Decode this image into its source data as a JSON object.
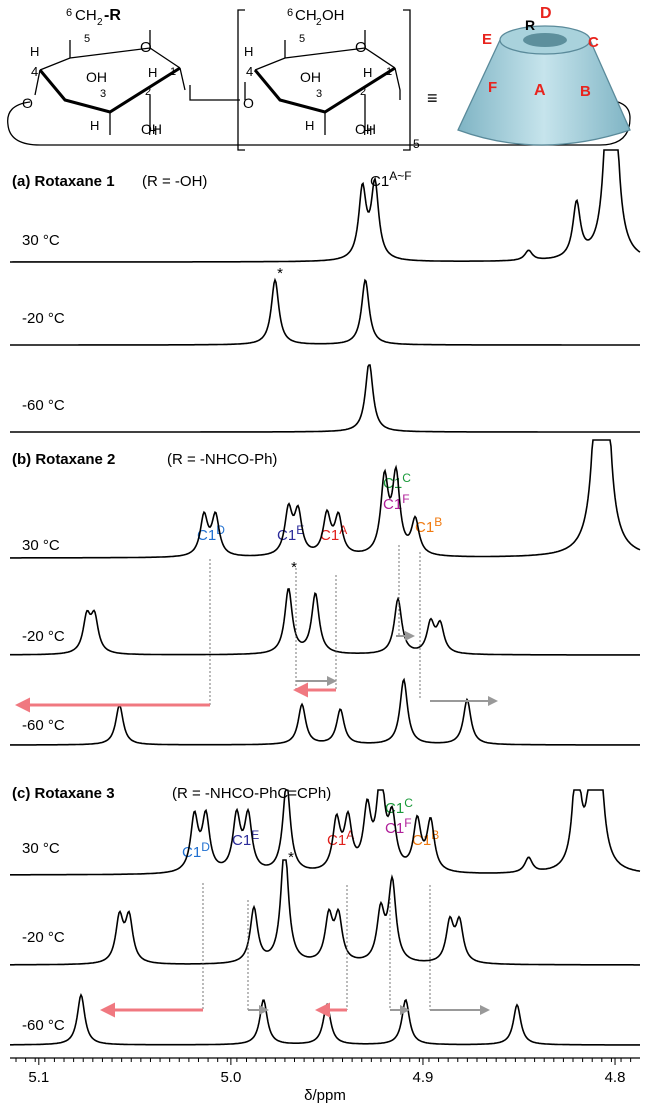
{
  "figure": {
    "structure": {
      "labels": [
        "6",
        "CH",
        "2",
        "-R",
        "5",
        "O",
        "H",
        "4",
        "OH",
        "H",
        "3",
        "2",
        "H",
        "1",
        "O",
        "H",
        "OH",
        "6",
        "CH",
        "2",
        "OH",
        "5",
        "O",
        "H",
        "4",
        "OH",
        "H",
        "3",
        "2",
        "H",
        "1",
        "O",
        "H",
        "OH",
        "5",
        "≡",
        "R",
        "D",
        "E",
        "C",
        "F",
        "A",
        "B"
      ]
    },
    "chart_data": {
      "type": "nmr-stack",
      "x_label": "δ/ppm",
      "xlim": [
        5.115,
        4.787
      ],
      "xticks": [
        5.1,
        {
          "value": 5,
          "label": "5.0"
        },
        4.9,
        4.8
      ],
      "panels": [
        {
          "label": "(a) Rotaxane 1",
          "substituent": "(R = -OH)",
          "peak_labels": [
            {
              "base": "C1",
              "sup": "A~F",
              "color": "#000000"
            }
          ],
          "asterisks": [
            "*"
          ],
          "spectra": [
            {
              "temperature": "30 °C",
              "peaks": [
                {
                  "ppm": 4.9315,
                  "height": 70
                },
                {
                  "ppm": 4.925,
                  "height": 75
                },
                {
                  "ppm": 4.845,
                  "height": 10
                },
                {
                  "ppm": 4.82,
                  "height": 55
                },
                {
                  "ppm": 4.802,
                  "height": 400
                }
              ]
            },
            {
              "temperature": "-20 °C",
              "peaks": [
                {
                  "ppm": 4.977,
                  "height": 65
                },
                {
                  "ppm": 4.93,
                  "height": 65
                }
              ]
            },
            {
              "temperature": "-60 °C",
              "peaks": [
                {
                  "ppm": 4.928,
                  "height": 70
                }
              ]
            }
          ]
        },
        {
          "label": "(b) Rotaxane 2",
          "substituent": "(R = -NHCO-Ph)",
          "peak_labels": [
            {
              "base": "C1",
              "sup": "D",
              "color": "#1f6fd0"
            },
            {
              "base": "C1",
              "sup": "E",
              "color": "#2b2b9a"
            },
            {
              "base": "C1",
              "sup": "A",
              "color": "#e0201c"
            },
            {
              "base": "C1",
              "sup": "C",
              "color": "#1a9a3a"
            },
            {
              "base": "C1",
              "sup": "F",
              "color": "#b0209a"
            },
            {
              "base": "C1",
              "sup": "B",
              "color": "#f07a10"
            }
          ],
          "asterisks": [
            "*"
          ],
          "spectra": [
            {
              "temperature": "30 °C",
              "peaks": [
                {
                  "ppm": 5.014,
                  "height": 40
                },
                {
                  "ppm": 5.008,
                  "height": 40
                },
                {
                  "ppm": 4.97,
                  "height": 45
                },
                {
                  "ppm": 4.965,
                  "height": 42
                },
                {
                  "ppm": 4.95,
                  "height": 40
                },
                {
                  "ppm": 4.944,
                  "height": 38
                },
                {
                  "ppm": 4.92,
                  "height": 75
                },
                {
                  "ppm": 4.914,
                  "height": 78
                },
                {
                  "ppm": 4.904,
                  "height": 35
                },
                {
                  "ppm": 4.807,
                  "height": 600
                }
              ]
            },
            {
              "temperature": "-20 °C",
              "peaks": [
                {
                  "ppm": 5.075,
                  "height": 35
                },
                {
                  "ppm": 5.071,
                  "height": 35
                },
                {
                  "ppm": 4.97,
                  "height": 65
                },
                {
                  "ppm": 4.956,
                  "height": 60
                },
                {
                  "ppm": 4.913,
                  "height": 55
                },
                {
                  "ppm": 4.896,
                  "height": 30
                },
                {
                  "ppm": 4.891,
                  "height": 28
                }
              ]
            },
            {
              "temperature": "-60 °C",
              "peaks": [
                {
                  "ppm": 5.058,
                  "height": 40
                },
                {
                  "ppm": 4.963,
                  "height": 40
                },
                {
                  "ppm": 4.943,
                  "height": 35
                },
                {
                  "ppm": 4.91,
                  "height": 65
                },
                {
                  "ppm": 4.877,
                  "height": 45
                }
              ]
            }
          ]
        },
        {
          "label": "(c) Rotaxane 3",
          "substituent": "(R = -NHCO-PhC=CPh)",
          "peak_labels": [
            {
              "base": "C1",
              "sup": "D",
              "color": "#1f6fd0"
            },
            {
              "base": "C1",
              "sup": "E",
              "color": "#2b2b9a"
            },
            {
              "base": "C1",
              "sup": "A",
              "color": "#e0201c"
            },
            {
              "base": "C1",
              "sup": "C",
              "color": "#1a9a3a"
            },
            {
              "base": "C1",
              "sup": "F",
              "color": "#b0209a"
            },
            {
              "base": "C1",
              "sup": "B",
              "color": "#f07a10"
            }
          ],
          "asterisks": [
            "*"
          ],
          "spectra": [
            {
              "temperature": "30 °C",
              "peaks": [
                {
                  "ppm": 5.019,
                  "height": 55
                },
                {
                  "ppm": 5.013,
                  "height": 55
                },
                {
                  "ppm": 4.997,
                  "height": 55
                },
                {
                  "ppm": 4.991,
                  "height": 55
                },
                {
                  "ppm": 4.971,
                  "height": 90
                },
                {
                  "ppm": 4.945,
                  "height": 50
                },
                {
                  "ppm": 4.939,
                  "height": 50
                },
                {
                  "ppm": 4.929,
                  "height": 60
                },
                {
                  "ppm": 4.922,
                  "height": 95
                },
                {
                  "ppm": 4.916,
                  "height": 50
                },
                {
                  "ppm": 4.903,
                  "height": 50
                },
                {
                  "ppm": 4.896,
                  "height": 50
                },
                {
                  "ppm": 4.845,
                  "height": 15
                },
                {
                  "ppm": 4.82,
                  "height": 110
                },
                {
                  "ppm": 4.81,
                  "height": 300
                }
              ]
            },
            {
              "temperature": "-20 °C",
              "peaks": [
                {
                  "ppm": 5.058,
                  "height": 45
                },
                {
                  "ppm": 5.053,
                  "height": 45
                },
                {
                  "ppm": 4.988,
                  "height": 55
                },
                {
                  "ppm": 4.972,
                  "height": 120
                },
                {
                  "ppm": 4.949,
                  "height": 45
                },
                {
                  "ppm": 4.944,
                  "height": 45
                },
                {
                  "ppm": 4.922,
                  "height": 50
                },
                {
                  "ppm": 4.916,
                  "height": 80
                },
                {
                  "ppm": 4.886,
                  "height": 40
                },
                {
                  "ppm": 4.881,
                  "height": 40
                }
              ]
            },
            {
              "temperature": "-60 °C",
              "peaks": [
                {
                  "ppm": 5.078,
                  "height": 50
                },
                {
                  "ppm": 4.983,
                  "height": 45
                },
                {
                  "ppm": 4.95,
                  "height": 40
                },
                {
                  "ppm": 4.909,
                  "height": 45
                },
                {
                  "ppm": 4.851,
                  "height": 40
                }
              ]
            }
          ]
        }
      ]
    }
  }
}
